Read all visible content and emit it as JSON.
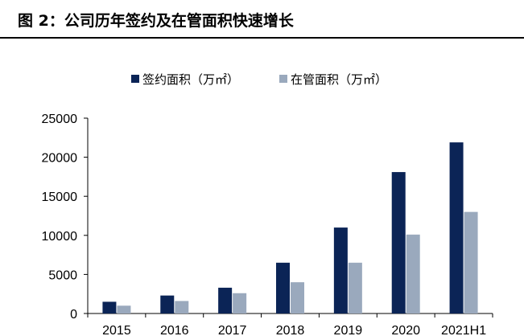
{
  "figure": {
    "title": "图 2：公司历年签约及在管面积快速增长"
  },
  "colors": {
    "signed": "#0b2456",
    "managed": "#9aa9bd",
    "axis": "#000000"
  },
  "chart_data": {
    "type": "bar",
    "title": "",
    "xlabel": "",
    "ylabel": "",
    "ylim": [
      0,
      25000
    ],
    "yticks": [
      0,
      5000,
      10000,
      15000,
      20000,
      25000
    ],
    "grid": false,
    "legend_position": "top",
    "categories": [
      "2015",
      "2016",
      "2017",
      "2018",
      "2019",
      "2020",
      "2021H1"
    ],
    "series": [
      {
        "name": "签约面积（万㎡）",
        "color": "#0b2456",
        "values": [
          1500,
          2300,
          3300,
          6500,
          11000,
          18100,
          21900
        ]
      },
      {
        "name": "在管面积（万㎡）",
        "color": "#9aa9bd",
        "values": [
          1000,
          1600,
          2600,
          4000,
          6500,
          10100,
          13000
        ]
      }
    ]
  }
}
